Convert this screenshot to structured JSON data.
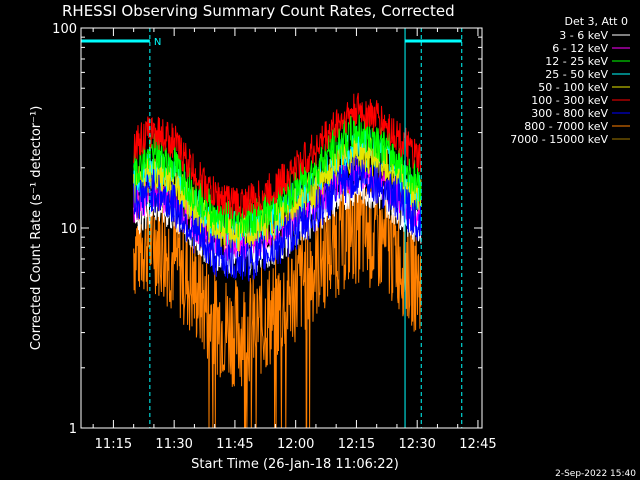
{
  "chart_data": {
    "type": "line",
    "title": "RHESSI Observing Summary Count Rates, Corrected",
    "xlabel": "Start Time (26-Jan-18 11:06:22)",
    "ylabel": "Corrected Count Rate (s⁻¹ detector⁻¹)",
    "yscale": "log",
    "ylim": [
      1,
      100
    ],
    "xlim": [
      "11:07",
      "12:46"
    ],
    "yticks": [
      "1",
      "10",
      "100"
    ],
    "xticks": [
      "11:15",
      "11:30",
      "11:45",
      "12:00",
      "12:15",
      "12:30",
      "12:45"
    ],
    "legend_header": "Det 3, Att 0",
    "legend_position": "top-right",
    "footer_date": "2-Sep-2022 15:40",
    "annotations": {
      "night_marker": "N",
      "night_intervals": [
        [
          "11:07",
          "11:24"
        ],
        [
          "12:27",
          "12:41"
        ]
      ],
      "solid_vlines": [
        "11:07",
        "12:27"
      ],
      "dashed_vlines": [
        "11:24",
        "12:31",
        "12:41"
      ]
    },
    "data_interval": [
      "11:20",
      "12:31"
    ],
    "series": [
      {
        "name": "3 - 6 keV",
        "color": "#ffffff",
        "values": [
          {
            "t": "11:20",
            "y": 11
          },
          {
            "t": "11:25",
            "y": 13
          },
          {
            "t": "11:30",
            "y": 11.5
          },
          {
            "t": "11:35",
            "y": 9
          },
          {
            "t": "11:40",
            "y": 7.5
          },
          {
            "t": "11:45",
            "y": 7
          },
          {
            "t": "11:50",
            "y": 7.2
          },
          {
            "t": "11:55",
            "y": 8
          },
          {
            "t": "12:00",
            "y": 9.5
          },
          {
            "t": "12:05",
            "y": 11.5
          },
          {
            "t": "12:10",
            "y": 14
          },
          {
            "t": "12:15",
            "y": 16
          },
          {
            "t": "12:20",
            "y": 15
          },
          {
            "t": "12:25",
            "y": 12.5
          },
          {
            "t": "12:30",
            "y": 10
          }
        ]
      },
      {
        "name": "6 - 12 keV",
        "color": "#ff00ff",
        "values": [
          {
            "t": "11:20",
            "y": 13
          },
          {
            "t": "11:25",
            "y": 15
          },
          {
            "t": "11:30",
            "y": 13.5
          },
          {
            "t": "11:35",
            "y": 10.5
          },
          {
            "t": "11:40",
            "y": 8.8
          },
          {
            "t": "11:45",
            "y": 8.3
          },
          {
            "t": "11:50",
            "y": 8.5
          },
          {
            "t": "11:55",
            "y": 9.5
          },
          {
            "t": "12:00",
            "y": 11.2
          },
          {
            "t": "12:05",
            "y": 13.5
          },
          {
            "t": "12:10",
            "y": 16.5
          },
          {
            "t": "12:15",
            "y": 19
          },
          {
            "t": "12:20",
            "y": 17.5
          },
          {
            "t": "12:25",
            "y": 14.5
          },
          {
            "t": "12:30",
            "y": 12
          }
        ]
      },
      {
        "name": "12 - 25 keV",
        "color": "#00ff00",
        "values": [
          {
            "t": "11:20",
            "y": 20
          },
          {
            "t": "11:25",
            "y": 24
          },
          {
            "t": "11:30",
            "y": 21
          },
          {
            "t": "11:35",
            "y": 15
          },
          {
            "t": "11:40",
            "y": 12
          },
          {
            "t": "11:45",
            "y": 11
          },
          {
            "t": "11:50",
            "y": 11.5
          },
          {
            "t": "11:55",
            "y": 13
          },
          {
            "t": "12:00",
            "y": 16
          },
          {
            "t": "12:05",
            "y": 20
          },
          {
            "t": "12:10",
            "y": 26
          },
          {
            "t": "12:15",
            "y": 31
          },
          {
            "t": "12:20",
            "y": 28
          },
          {
            "t": "12:25",
            "y": 22
          },
          {
            "t": "12:30",
            "y": 17
          }
        ]
      },
      {
        "name": "25 - 50 keV",
        "color": "#00ffff",
        "values": [
          {
            "t": "11:20",
            "y": 17
          },
          {
            "t": "11:25",
            "y": 20
          },
          {
            "t": "11:30",
            "y": 18
          },
          {
            "t": "11:35",
            "y": 13
          },
          {
            "t": "11:40",
            "y": 10.5
          },
          {
            "t": "11:45",
            "y": 9.8
          },
          {
            "t": "11:50",
            "y": 10
          },
          {
            "t": "11:55",
            "y": 11.5
          },
          {
            "t": "12:00",
            "y": 14
          },
          {
            "t": "12:05",
            "y": 17
          },
          {
            "t": "12:10",
            "y": 22
          },
          {
            "t": "12:15",
            "y": 26
          },
          {
            "t": "12:20",
            "y": 24
          },
          {
            "t": "12:25",
            "y": 19
          },
          {
            "t": "12:30",
            "y": 15
          }
        ]
      },
      {
        "name": "50 - 100 keV",
        "color": "#e6e600",
        "values": [
          {
            "t": "11:20",
            "y": 16
          },
          {
            "t": "11:25",
            "y": 19
          },
          {
            "t": "11:30",
            "y": 17
          },
          {
            "t": "11:35",
            "y": 12.5
          },
          {
            "t": "11:40",
            "y": 10
          },
          {
            "t": "11:45",
            "y": 9.3
          },
          {
            "t": "11:50",
            "y": 9.6
          },
          {
            "t": "11:55",
            "y": 11
          },
          {
            "t": "12:00",
            "y": 13.2
          },
          {
            "t": "12:05",
            "y": 16
          },
          {
            "t": "12:10",
            "y": 20.5
          },
          {
            "t": "12:15",
            "y": 24
          },
          {
            "t": "12:20",
            "y": 22
          },
          {
            "t": "12:25",
            "y": 18
          },
          {
            "t": "12:30",
            "y": 14
          }
        ]
      },
      {
        "name": "100 - 300 keV",
        "color": "#ff0000",
        "values": [
          {
            "t": "11:20",
            "y": 26
          },
          {
            "t": "11:25",
            "y": 31
          },
          {
            "t": "11:30",
            "y": 27
          },
          {
            "t": "11:35",
            "y": 19
          },
          {
            "t": "11:40",
            "y": 14.5
          },
          {
            "t": "11:45",
            "y": 13.3
          },
          {
            "t": "11:50",
            "y": 13.8
          },
          {
            "t": "11:55",
            "y": 16
          },
          {
            "t": "12:00",
            "y": 20
          },
          {
            "t": "12:05",
            "y": 25
          },
          {
            "t": "12:10",
            "y": 33
          },
          {
            "t": "12:15",
            "y": 39
          },
          {
            "t": "12:20",
            "y": 36
          },
          {
            "t": "12:25",
            "y": 29
          },
          {
            "t": "12:30",
            "y": 22
          }
        ]
      },
      {
        "name": "300 - 800 keV",
        "color": "#0000ff",
        "values": [
          {
            "t": "11:20",
            "y": 13.5
          },
          {
            "t": "11:25",
            "y": 15.5
          },
          {
            "t": "11:30",
            "y": 13
          },
          {
            "t": "11:35",
            "y": 9.5
          },
          {
            "t": "11:40",
            "y": 7.3
          },
          {
            "t": "11:45",
            "y": 6.8
          },
          {
            "t": "11:50",
            "y": 7
          },
          {
            "t": "11:55",
            "y": 8
          },
          {
            "t": "12:00",
            "y": 9.8
          },
          {
            "t": "12:05",
            "y": 12
          },
          {
            "t": "12:10",
            "y": 15.5
          },
          {
            "t": "12:15",
            "y": 18.5
          },
          {
            "t": "12:20",
            "y": 17
          },
          {
            "t": "12:25",
            "y": 14
          },
          {
            "t": "12:30",
            "y": 11
          }
        ]
      },
      {
        "name": "800 - 7000 keV",
        "color": "#ff8000",
        "values": [
          {
            "t": "11:20",
            "y": 8
          },
          {
            "t": "11:25",
            "y": 9
          },
          {
            "t": "11:30",
            "y": 7
          },
          {
            "t": "11:35",
            "y": 5
          },
          {
            "t": "11:40",
            "y": 3.5
          },
          {
            "t": "11:45",
            "y": 3
          },
          {
            "t": "11:50",
            "y": 3.2
          },
          {
            "t": "11:55",
            "y": 3.8
          },
          {
            "t": "12:00",
            "y": 5
          },
          {
            "t": "12:05",
            "y": 6.5
          },
          {
            "t": "12:10",
            "y": 8.5
          },
          {
            "t": "12:15",
            "y": 10
          },
          {
            "t": "12:20",
            "y": 9
          },
          {
            "t": "12:25",
            "y": 7.5
          },
          {
            "t": "12:30",
            "y": 5.5
          }
        ]
      },
      {
        "name": "7000 - 15000 keV",
        "color": "#a07800",
        "values": []
      }
    ]
  }
}
